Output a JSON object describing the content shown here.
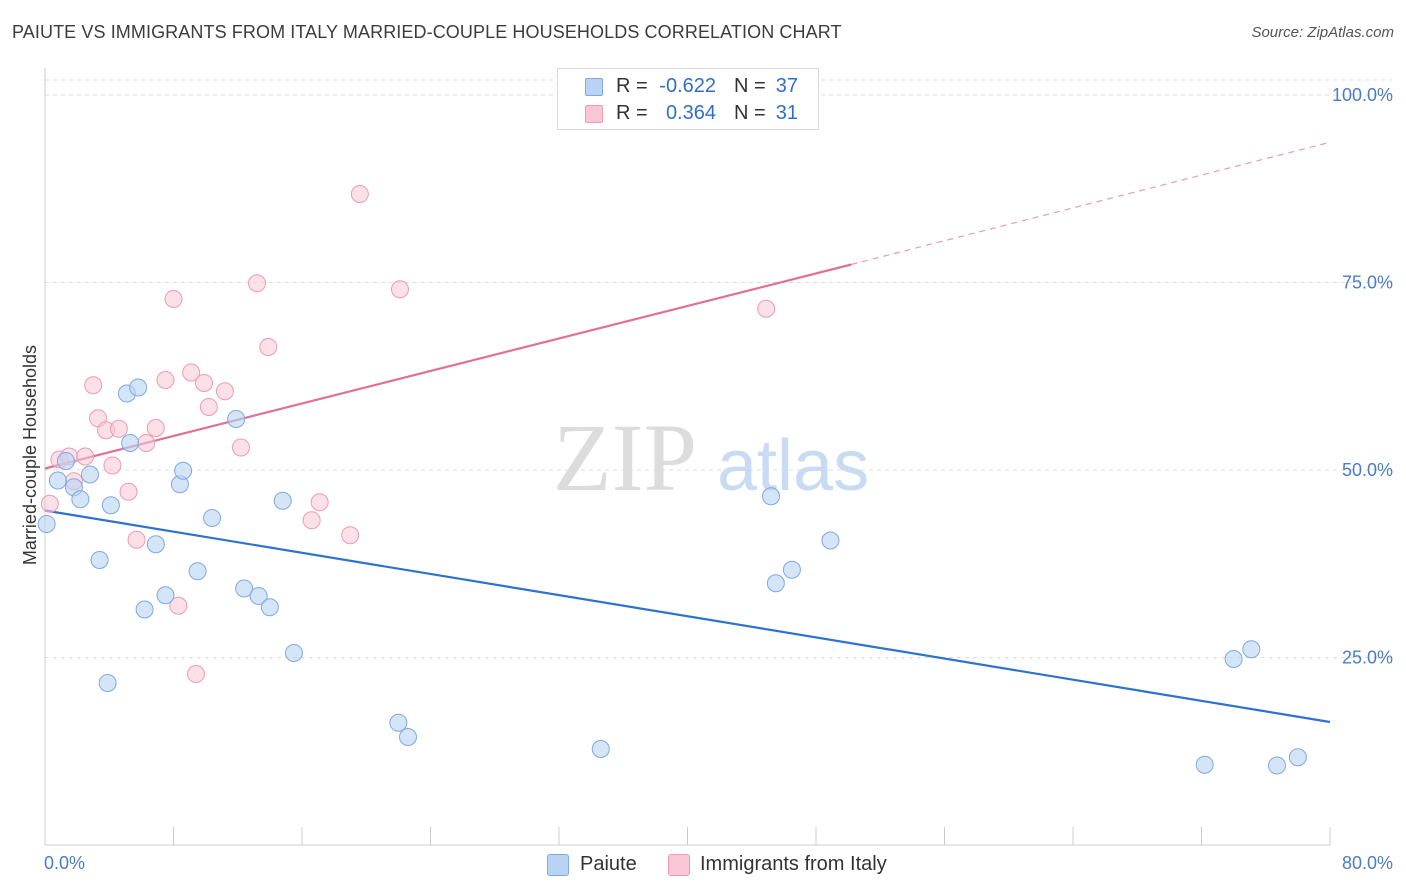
{
  "title": "PAIUTE VS IMMIGRANTS FROM ITALY MARRIED-COUPLE HOUSEHOLDS CORRELATION CHART",
  "source": "Source: ZipAtlas.com",
  "watermark": {
    "zip": "ZIP",
    "atlas": "atlas"
  },
  "colors": {
    "blue_fill": "#b9d3f4",
    "blue_stroke": "#7fa9e0",
    "blue_line": "#2d72d2",
    "pink_fill": "#f9c6d6",
    "pink_stroke": "#ee9ab5",
    "pink_line": "#e07098",
    "tick_text": "#4a7cc9",
    "grid": "#dddddd"
  },
  "legend_top": [
    {
      "series": "Paiute",
      "r_label": "R =",
      "r_value": "-0.622",
      "n_label": "N =",
      "n_value": "37"
    },
    {
      "series": "Immigrants from Italy",
      "r_label": "R =",
      "r_value": "0.364",
      "n_label": "N =",
      "n_value": "31"
    }
  ],
  "chart_data": {
    "type": "scatter",
    "title": "PAIUTE VS IMMIGRANTS FROM ITALY MARRIED-COUPLE HOUSEHOLDS CORRELATION CHART",
    "xlabel": "",
    "ylabel": "Married-couple Households",
    "xlim": [
      0,
      80
    ],
    "ylim": [
      0,
      102
    ],
    "x_tick_labels": [
      {
        "value": 0,
        "label": "0.0%"
      },
      {
        "value": 80,
        "label": "80.0%"
      }
    ],
    "y_tick_labels": [
      {
        "value": 25,
        "label": "25.0%"
      },
      {
        "value": 50,
        "label": "50.0%"
      },
      {
        "value": 75,
        "label": "75.0%"
      },
      {
        "value": 100,
        "label": "100.0%"
      }
    ],
    "legend": [
      "Paiute",
      "Immigrants from Italy"
    ],
    "series": [
      {
        "name": "Paiute",
        "color": "#b9d3f4",
        "points": [
          [
            0.1,
            42.8
          ],
          [
            0.8,
            48.6
          ],
          [
            1.3,
            51.2
          ],
          [
            1.8,
            47.7
          ],
          [
            2.2,
            46.1
          ],
          [
            2.8,
            49.4
          ],
          [
            3.4,
            38.0
          ],
          [
            3.9,
            21.6
          ],
          [
            4.1,
            45.3
          ],
          [
            5.1,
            60.2
          ],
          [
            5.3,
            53.6
          ],
          [
            5.8,
            61.0
          ],
          [
            6.2,
            31.4
          ],
          [
            6.9,
            40.1
          ],
          [
            7.5,
            33.3
          ],
          [
            8.4,
            48.1
          ],
          [
            8.6,
            49.9
          ],
          [
            9.5,
            36.5
          ],
          [
            10.4,
            43.6
          ],
          [
            11.9,
            56.8
          ],
          [
            12.4,
            34.2
          ],
          [
            13.3,
            33.2
          ],
          [
            14.0,
            31.7
          ],
          [
            14.8,
            45.9
          ],
          [
            15.5,
            25.6
          ],
          [
            22.0,
            16.3
          ],
          [
            22.6,
            14.4
          ],
          [
            34.6,
            12.8
          ],
          [
            45.2,
            46.5
          ],
          [
            45.5,
            34.9
          ],
          [
            46.5,
            36.7
          ],
          [
            48.9,
            40.6
          ],
          [
            72.2,
            10.7
          ],
          [
            74.0,
            24.8
          ],
          [
            75.1,
            26.1
          ],
          [
            76.7,
            10.6
          ],
          [
            78.0,
            11.7
          ]
        ],
        "trend": {
          "x": [
            0,
            80
          ],
          "y": [
            44.6,
            16.4
          ],
          "style": "solid"
        }
      },
      {
        "name": "Immigrants from Italy",
        "color": "#f9c6d6",
        "points": [
          [
            0.3,
            45.5
          ],
          [
            0.9,
            51.4
          ],
          [
            1.5,
            51.8
          ],
          [
            1.8,
            48.5
          ],
          [
            2.5,
            51.8
          ],
          [
            3.0,
            61.3
          ],
          [
            3.3,
            56.9
          ],
          [
            3.8,
            55.3
          ],
          [
            4.2,
            50.6
          ],
          [
            4.6,
            55.5
          ],
          [
            5.2,
            47.1
          ],
          [
            5.7,
            40.7
          ],
          [
            6.3,
            53.6
          ],
          [
            6.9,
            55.6
          ],
          [
            7.5,
            62.0
          ],
          [
            8.0,
            72.8
          ],
          [
            8.3,
            31.9
          ],
          [
            9.1,
            63.0
          ],
          [
            9.4,
            22.8
          ],
          [
            9.9,
            61.6
          ],
          [
            10.2,
            58.4
          ],
          [
            11.2,
            60.5
          ],
          [
            12.2,
            53.0
          ],
          [
            13.2,
            74.9
          ],
          [
            13.9,
            66.4
          ],
          [
            16.6,
            43.3
          ],
          [
            17.1,
            45.7
          ],
          [
            19.0,
            41.3
          ],
          [
            19.6,
            86.8
          ],
          [
            22.1,
            74.1
          ],
          [
            44.9,
            71.5
          ]
        ],
        "trend": {
          "x": [
            0,
            50.2,
            80
          ],
          "y": [
            50.2,
            77.4,
            93.7
          ],
          "style": "solid then dashed"
        }
      }
    ]
  },
  "legend_bottom": [
    {
      "label": "Paiute"
    },
    {
      "label": "Immigrants from Italy"
    }
  ]
}
